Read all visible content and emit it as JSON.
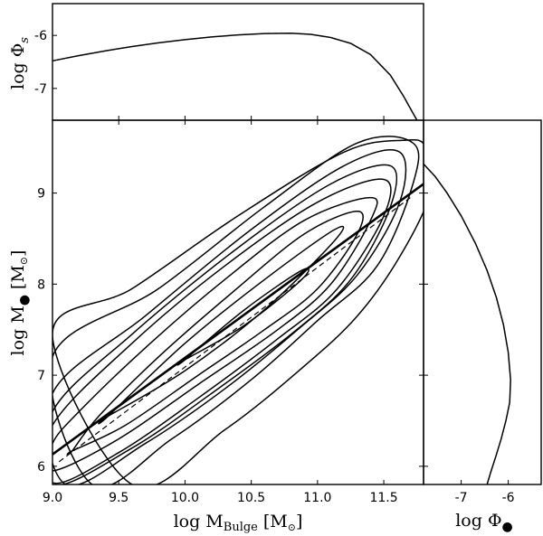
{
  "chart_data": [
    {
      "name": "top-panel",
      "type": "line",
      "ylabel_text": "log Φ",
      "ylabel_sub": "s",
      "xlim": [
        9.0,
        11.8
      ],
      "ylim": [
        -7.6,
        -5.4
      ],
      "y_ticks": [
        -6,
        -7
      ],
      "y_tick_labels": [
        "-6",
        "-7"
      ],
      "x_tick_labels_shown": false,
      "grid": false,
      "series": [
        {
          "x": [
            9.0,
            9.2,
            9.4,
            9.6,
            9.8,
            10.0,
            10.2,
            10.4,
            10.6,
            10.8,
            10.95,
            11.1,
            11.25,
            11.4,
            11.55,
            11.65,
            11.75
          ],
          "y": [
            -6.48,
            -6.38,
            -6.29,
            -6.21,
            -6.14,
            -6.08,
            -6.03,
            -5.99,
            -5.965,
            -5.96,
            -5.98,
            -6.04,
            -6.15,
            -6.36,
            -6.75,
            -7.15,
            -7.6
          ]
        }
      ]
    },
    {
      "name": "main-panel",
      "type": "line",
      "xlabel_text": "log M",
      "xlabel_sub": "Bulge",
      "xlabel_unit": "[M",
      "xlabel_unit_close": "]",
      "ylabel_text": "log M",
      "ylabel_unit": "[M",
      "ylabel_unit_close": "]",
      "xlim": [
        9.0,
        11.8
      ],
      "ylim": [
        5.8,
        9.8
      ],
      "x_ticks": [
        9.0,
        9.5,
        10.0,
        10.5,
        11.0,
        11.5
      ],
      "x_tick_labels": [
        "9.0",
        "9.5",
        "10.0",
        "10.5",
        "11.0",
        "11.5"
      ],
      "y_ticks": [
        6,
        7,
        8,
        9
      ],
      "y_tick_labels": [
        "6",
        "7",
        "8",
        "9"
      ],
      "grid": false,
      "relation_solid": {
        "x": [
          9.0,
          11.8
        ],
        "y": [
          6.13,
          9.1
        ]
      },
      "relation_dashed": {
        "x": [
          9.05,
          11.7
        ],
        "y": [
          6.05,
          8.95
        ]
      },
      "contours": [
        {
          "x": [
            10.0,
            10.45,
            10.88,
            10.88,
            10.45,
            10.0
          ],
          "y": [
            7.17,
            7.55,
            8.05,
            8.15,
            7.72,
            7.17
          ]
        },
        {
          "x": [
            9.42,
            10.0,
            10.6,
            11.13,
            11.13,
            10.6,
            10.0,
            9.42
          ],
          "y": [
            6.55,
            7.05,
            7.72,
            8.48,
            8.6,
            8.05,
            7.35,
            6.55
          ]
        },
        {
          "x": [
            9.15,
            9.55,
            10.1,
            10.6,
            11.0,
            11.3,
            11.3,
            10.9,
            10.35,
            9.8,
            9.35,
            9.15
          ],
          "y": [
            6.17,
            6.45,
            7.0,
            7.5,
            7.95,
            8.55,
            8.8,
            8.55,
            7.9,
            7.2,
            6.55,
            6.17
          ]
        },
        {
          "x": [
            9.0,
            9.5,
            10.1,
            10.7,
            11.1,
            11.4,
            11.4,
            10.9,
            10.3,
            9.7,
            9.2,
            9.0
          ],
          "y": [
            5.95,
            6.3,
            6.9,
            7.5,
            8.0,
            8.7,
            8.95,
            8.7,
            8.05,
            7.3,
            6.6,
            6.25
          ]
        },
        {
          "x": [
            9.0,
            9.5,
            10.1,
            10.7,
            11.15,
            11.5,
            11.5,
            11.0,
            10.3,
            9.6,
            9.0
          ],
          "y": [
            5.82,
            6.15,
            6.75,
            7.4,
            7.95,
            8.75,
            9.15,
            8.9,
            8.2,
            7.35,
            6.45
          ]
        },
        {
          "x": [
            9.0,
            9.6,
            10.2,
            10.8,
            11.25,
            11.55,
            11.55,
            11.1,
            10.4,
            9.6,
            9.0
          ],
          "y": [
            5.8,
            6.2,
            6.8,
            7.45,
            8.05,
            8.85,
            9.3,
            9.1,
            8.4,
            7.45,
            6.6
          ]
        },
        {
          "x": [
            9.1,
            9.7,
            10.3,
            10.85,
            11.3,
            11.62,
            11.62,
            11.2,
            10.5,
            9.7,
            9.0
          ],
          "y": [
            5.8,
            6.25,
            6.85,
            7.5,
            8.1,
            8.9,
            9.45,
            9.3,
            8.6,
            7.65,
            6.8
          ]
        },
        {
          "x": [
            9.3,
            9.9,
            10.5,
            11.0,
            11.45,
            11.72,
            11.72,
            11.3,
            10.6,
            9.8,
            9.0
          ],
          "y": [
            5.8,
            6.3,
            6.95,
            7.6,
            8.2,
            9.1,
            9.55,
            9.55,
            8.85,
            7.95,
            7.2
          ]
        },
        {
          "x": [
            9.6,
            10.3,
            10.9,
            11.3,
            11.62,
            11.85,
            11.82,
            11.65,
            11.2,
            10.4,
            9.6,
            9.0
          ],
          "y": [
            5.8,
            6.4,
            7.1,
            7.65,
            8.3,
            9.0,
            9.5,
            9.58,
            9.45,
            8.75,
            7.95,
            7.45
          ]
        }
      ]
    },
    {
      "name": "right-panel",
      "type": "line",
      "xlabel_text": "log Φ",
      "xlim": [
        -7.8,
        -5.3
      ],
      "ylim": [
        5.8,
        9.8
      ],
      "x_ticks": [
        -7,
        -6
      ],
      "x_tick_labels": [
        "-7",
        "-6"
      ],
      "y_tick_labels_shown": false,
      "grid": false,
      "series": [
        {
          "x": [
            -7.8,
            -7.55,
            -7.3,
            -7.0,
            -6.7,
            -6.45,
            -6.25,
            -6.1,
            -6.0,
            -5.95,
            -5.97,
            -6.05,
            -6.15,
            -6.27,
            -6.38,
            -6.45
          ],
          "y": [
            9.32,
            9.18,
            9.0,
            8.75,
            8.45,
            8.15,
            7.85,
            7.55,
            7.25,
            6.95,
            6.7,
            6.5,
            6.3,
            6.1,
            5.92,
            5.8
          ]
        }
      ]
    }
  ]
}
